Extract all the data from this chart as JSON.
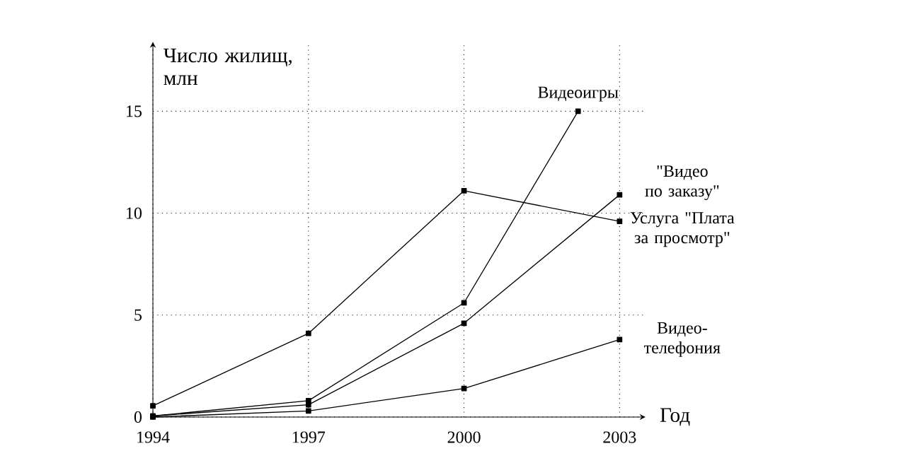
{
  "chart_data": {
    "type": "line",
    "xlabel": "Год",
    "ylabel": "Число жилищ, млн",
    "xlim": [
      1994,
      2003.5
    ],
    "ylim": [
      0,
      18.4
    ],
    "xticks": [
      1994,
      1997,
      2000,
      2003
    ],
    "yticks": [
      0,
      5,
      10,
      15
    ],
    "grid": true,
    "marker": "square",
    "line_style": "solid",
    "series": [
      {
        "name": "Видеоигры",
        "color": "#000000",
        "x": [
          1994,
          1997,
          2000,
          2002.2
        ],
        "values": [
          0.05,
          0.8,
          5.6,
          15
        ]
      },
      {
        "name": "\"Видео по заказу\"",
        "color": "#000000",
        "x": [
          1994,
          1997,
          2000,
          2003
        ],
        "values": [
          0.05,
          0.6,
          4.6,
          10.9
        ]
      },
      {
        "name": "Услуга \"Плата за просмотр\"",
        "color": "#000000",
        "x": [
          1994,
          1997,
          2000,
          2003
        ],
        "values": [
          0.55,
          4.1,
          11.1,
          9.6
        ]
      },
      {
        "name": "Видео-телефония",
        "color": "#000000",
        "x": [
          1994,
          1997,
          2000,
          2003
        ],
        "values": [
          0,
          0.3,
          1.4,
          3.8
        ]
      }
    ]
  }
}
